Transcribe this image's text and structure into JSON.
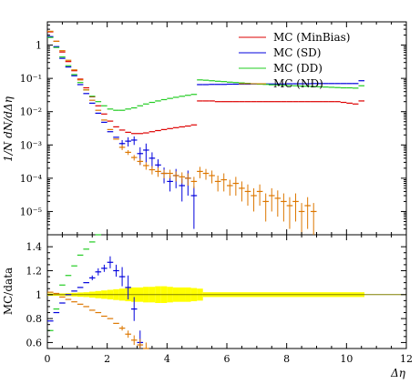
{
  "main_plot": {
    "ylabel": "1/N dN/dΔη",
    "y_scale": "log",
    "ylim": [
      2e-06,
      5
    ],
    "y_tick_labels": [
      {
        "value": 1,
        "label": "1"
      },
      {
        "value": 0.1,
        "label": "10⁻¹"
      },
      {
        "value": 0.01,
        "label": "10⁻²"
      },
      {
        "value": 0.001,
        "label": "10⁻³"
      },
      {
        "value": 0.0001,
        "label": "10⁻⁴"
      },
      {
        "value": 1e-05,
        "label": "10⁻⁵"
      }
    ]
  },
  "ratio_plot": {
    "ylabel": "MC/data",
    "ylim": [
      0.55,
      1.5
    ],
    "y_tick_labels": [
      {
        "value": 0.6,
        "label": "0.6"
      },
      {
        "value": 0.8,
        "label": "0.8"
      },
      {
        "value": 1.0,
        "label": "1"
      },
      {
        "value": 1.2,
        "label": "1.2"
      },
      {
        "value": 1.4,
        "label": "1.4"
      }
    ]
  },
  "x_axis": {
    "xlabel": "Δη",
    "xlim": [
      0,
      12
    ],
    "tick_labels": [
      {
        "value": 0,
        "label": "0"
      },
      {
        "value": 2,
        "label": "2"
      },
      {
        "value": 4,
        "label": "4"
      },
      {
        "value": 6,
        "label": "6"
      },
      {
        "value": 8,
        "label": "8"
      },
      {
        "value": 10,
        "label": "10"
      },
      {
        "value": 12,
        "label": "12"
      }
    ]
  },
  "legend": {
    "placement": "top-right",
    "entries": [
      {
        "label": "MC (MinBias)",
        "color": "#dd0000"
      },
      {
        "label": "MC (SD)",
        "color": "#0000dd"
      },
      {
        "label": "MC (DD)",
        "color": "#22cc22"
      },
      {
        "label": "MC (ND)",
        "color": "#dd7700"
      }
    ]
  },
  "chart_data": {
    "type": "scatter",
    "x_bin_width": 0.2,
    "series": [
      {
        "name": "MC (MinBias)",
        "color": "#dd0000",
        "x": [
          0.1,
          0.3,
          0.5,
          0.7,
          0.9,
          1.1,
          1.3,
          1.5,
          1.7,
          1.9,
          2.1,
          2.3,
          2.5,
          2.7,
          2.9,
          3.1,
          3.3,
          3.5,
          3.7,
          3.9,
          4.1,
          4.3,
          4.5,
          4.7,
          4.9,
          5.1,
          5.3,
          5.5,
          5.7,
          5.9,
          6.1,
          6.3,
          6.5,
          6.7,
          6.9,
          7.1,
          7.3,
          7.5,
          7.7,
          7.9,
          8.1,
          8.3,
          8.5,
          8.7,
          8.9,
          9.1,
          9.3,
          9.5,
          9.7,
          9.9,
          10.1,
          10.3,
          10.5
        ],
        "y": [
          2.5,
          1.3,
          0.62,
          0.32,
          0.17,
          0.095,
          0.052,
          0.028,
          0.015,
          0.0085,
          0.0052,
          0.0035,
          0.0028,
          0.0024,
          0.0022,
          0.0022,
          0.0023,
          0.0025,
          0.0027,
          0.0029,
          0.0031,
          0.0033,
          0.0035,
          0.0037,
          0.004,
          0.021,
          0.021,
          0.021,
          0.02,
          0.02,
          0.02,
          0.02,
          0.02,
          0.02,
          0.02,
          0.02,
          0.02,
          0.02,
          0.02,
          0.02,
          0.02,
          0.02,
          0.02,
          0.02,
          0.02,
          0.02,
          0.02,
          0.02,
          0.02,
          0.019,
          0.018,
          0.017,
          0.021
        ]
      },
      {
        "name": "MC (SD)",
        "color": "#0000dd",
        "x": [
          0.1,
          0.3,
          0.5,
          0.7,
          0.9,
          1.1,
          1.3,
          1.5,
          1.7,
          1.9,
          2.1,
          2.3,
          2.5,
          2.7,
          2.9,
          3.1,
          3.3,
          3.5,
          3.7,
          3.9,
          4.1,
          4.3,
          4.5,
          4.7,
          4.9,
          5.1,
          5.3,
          5.5,
          5.7,
          5.9,
          6.1,
          6.3,
          6.5,
          6.7,
          6.9,
          7.1,
          7.3,
          7.5,
          7.7,
          7.9,
          8.1,
          8.3,
          8.5,
          8.7,
          8.9,
          9.1,
          9.3,
          9.5,
          9.7,
          9.9,
          10.1,
          10.3,
          10.5
        ],
        "y": [
          1.8,
          0.9,
          0.4,
          0.22,
          0.12,
          0.065,
          0.035,
          0.018,
          0.009,
          0.0048,
          0.0025,
          0.0017,
          0.0011,
          0.0013,
          0.0014,
          0.00055,
          0.0007,
          0.0004,
          0.00025,
          0.00014,
          8e-05,
          0.00012,
          6e-05,
          0.0001,
          3e-05,
          0.065,
          0.065,
          0.066,
          0.066,
          0.066,
          0.067,
          0.067,
          0.067,
          0.067,
          0.068,
          0.068,
          0.068,
          0.068,
          0.068,
          0.068,
          0.069,
          0.069,
          0.069,
          0.069,
          0.07,
          0.07,
          0.07,
          0.07,
          0.07,
          0.07,
          0.07,
          0.07,
          0.085
        ],
        "yerr": [
          0,
          0,
          0,
          0,
          0,
          0,
          0,
          0,
          0,
          0,
          0,
          0,
          0.0003,
          0.0004,
          0.0004,
          0.0003,
          0.0004,
          0.0002,
          0.00012,
          7e-05,
          4e-05,
          7e-05,
          4e-05,
          7e-05,
          2.7e-05,
          0,
          0,
          0,
          0,
          0,
          0,
          0,
          0,
          0,
          0,
          0,
          0,
          0,
          0,
          0,
          0,
          0,
          0,
          0,
          0,
          0,
          0,
          0,
          0,
          0,
          0,
          0,
          0
        ]
      },
      {
        "name": "MC (DD)",
        "color": "#22cc22",
        "x": [
          0.1,
          0.3,
          0.5,
          0.7,
          0.9,
          1.1,
          1.3,
          1.5,
          1.7,
          1.9,
          2.1,
          2.3,
          2.5,
          2.7,
          2.9,
          3.1,
          3.3,
          3.5,
          3.7,
          3.9,
          4.1,
          4.3,
          4.5,
          4.7,
          4.9,
          5.1,
          5.3,
          5.5,
          5.7,
          5.9,
          6.1,
          6.3,
          6.5,
          6.7,
          6.9,
          7.1,
          7.3,
          7.5,
          7.7,
          7.9,
          8.1,
          8.3,
          8.5,
          8.7,
          8.9,
          9.1,
          9.3,
          9.5,
          9.7,
          9.9,
          10.1,
          10.3,
          10.5
        ],
        "y": [
          1.7,
          0.85,
          0.44,
          0.24,
          0.13,
          0.075,
          0.045,
          0.029,
          0.02,
          0.015,
          0.012,
          0.011,
          0.011,
          0.012,
          0.013,
          0.015,
          0.017,
          0.019,
          0.021,
          0.023,
          0.025,
          0.027,
          0.029,
          0.031,
          0.033,
          0.09,
          0.088,
          0.085,
          0.082,
          0.08,
          0.077,
          0.075,
          0.073,
          0.071,
          0.069,
          0.067,
          0.066,
          0.064,
          0.063,
          0.062,
          0.061,
          0.06,
          0.059,
          0.058,
          0.057,
          0.056,
          0.055,
          0.054,
          0.053,
          0.052,
          0.052,
          0.051,
          0.06
        ]
      },
      {
        "name": "MC (ND)",
        "color": "#dd7700",
        "x": [
          0.1,
          0.3,
          0.5,
          0.7,
          0.9,
          1.1,
          1.3,
          1.5,
          1.7,
          1.9,
          2.1,
          2.3,
          2.5,
          2.7,
          2.9,
          3.1,
          3.3,
          3.5,
          3.7,
          3.9,
          4.1,
          4.3,
          4.5,
          4.7,
          4.9,
          5.1,
          5.3,
          5.5,
          5.7,
          5.9,
          6.1,
          6.3,
          6.5,
          6.7,
          6.9,
          7.1,
          7.3,
          7.5,
          7.7,
          7.9,
          8.1,
          8.3,
          8.5,
          8.7,
          8.9
        ],
        "y": [
          2.6,
          1.3,
          0.68,
          0.35,
          0.18,
          0.09,
          0.045,
          0.022,
          0.011,
          0.0056,
          0.0029,
          0.0015,
          0.00085,
          0.0006,
          0.00042,
          0.00032,
          0.00024,
          0.00018,
          0.00016,
          0.00014,
          0.00014,
          0.00012,
          0.00011,
          0.0001,
          8e-05,
          0.00016,
          0.00014,
          0.00012,
          8e-05,
          9e-05,
          6e-05,
          7e-05,
          5e-05,
          4e-05,
          3e-05,
          4e-05,
          2e-05,
          3e-05,
          2.5e-05,
          2e-05,
          1.5e-05,
          2e-05,
          1e-05,
          1.5e-05,
          1e-05
        ],
        "yerr": [
          0,
          0,
          0,
          0,
          0,
          0,
          0,
          0,
          0,
          0,
          0,
          0,
          0.00015,
          0.0001,
          8e-05,
          7e-05,
          6e-05,
          5e-05,
          5e-05,
          4e-05,
          4e-05,
          4e-05,
          4e-05,
          4e-05,
          3e-05,
          6e-05,
          5e-05,
          5e-05,
          4e-05,
          5e-05,
          3e-05,
          4e-05,
          3e-05,
          2.5e-05,
          2e-05,
          2.5e-05,
          1.5e-05,
          2e-05,
          1.8e-05,
          1.5e-05,
          1.2e-05,
          1.5e-05,
          8e-06,
          1.2e-05,
          8e-06
        ]
      }
    ],
    "ratio_series": [
      {
        "name": "MC (SD)",
        "color": "#0000dd",
        "x": [
          0.1,
          0.3,
          0.5,
          0.7,
          0.9,
          1.1,
          1.3,
          1.5,
          1.7,
          1.9,
          2.1,
          2.3,
          2.5,
          2.7,
          2.9,
          3.1,
          3.3
        ],
        "y": [
          0.78,
          0.85,
          0.93,
          1.0,
          1.03,
          1.06,
          1.1,
          1.14,
          1.19,
          1.22,
          1.27,
          1.2,
          1.15,
          1.06,
          0.88,
          0.6,
          0.5
        ],
        "yerr": [
          0,
          0,
          0,
          0,
          0,
          0,
          0,
          0.02,
          0.03,
          0.03,
          0.05,
          0.05,
          0.08,
          0.1,
          0.1,
          0.1,
          0.1
        ]
      },
      {
        "name": "MC (DD)",
        "color": "#22cc22",
        "x": [
          0.1,
          0.3,
          0.5,
          0.7,
          0.9,
          1.1,
          1.3,
          1.5,
          1.7
        ],
        "y": [
          0.7,
          0.88,
          1.08,
          1.16,
          1.24,
          1.33,
          1.38,
          1.44,
          1.5
        ]
      },
      {
        "name": "MC (ND)",
        "color": "#dd7700",
        "x": [
          0.1,
          0.3,
          0.5,
          0.7,
          0.9,
          1.1,
          1.3,
          1.5,
          1.7,
          1.9,
          2.1,
          2.3,
          2.5,
          2.7,
          2.9,
          3.1,
          3.3
        ],
        "y": [
          1.02,
          1.01,
          0.98,
          0.96,
          0.94,
          0.92,
          0.9,
          0.87,
          0.85,
          0.82,
          0.8,
          0.76,
          0.72,
          0.67,
          0.62,
          0.58,
          0.55
        ],
        "yerr": [
          0,
          0,
          0,
          0,
          0,
          0,
          0,
          0,
          0,
          0,
          0,
          0,
          0.02,
          0.03,
          0.04,
          0.05,
          0.05
        ]
      }
    ],
    "uncertainty_band": {
      "color": "#ffff00",
      "x_edges": [
        0,
        0.2,
        0.4,
        0.6,
        0.8,
        1.0,
        1.2,
        1.4,
        1.6,
        1.8,
        2.0,
        2.2,
        2.4,
        2.6,
        2.8,
        3.0,
        3.2,
        3.4,
        3.6,
        3.8,
        4.0,
        4.2,
        4.4,
        4.6,
        4.8,
        5.0,
        5.2,
        10.6
      ],
      "half_width": [
        0.01,
        0.01,
        0.01,
        0.012,
        0.015,
        0.018,
        0.02,
        0.025,
        0.03,
        0.035,
        0.04,
        0.045,
        0.05,
        0.055,
        0.06,
        0.06,
        0.065,
        0.065,
        0.07,
        0.07,
        0.065,
        0.06,
        0.06,
        0.06,
        0.055,
        0.05,
        0.02
      ]
    }
  }
}
